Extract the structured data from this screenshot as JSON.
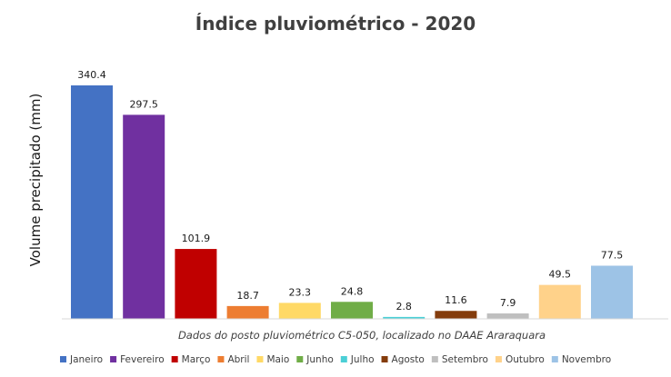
{
  "chart_data": {
    "type": "bar",
    "title": "Índice pluviométrico - 2020",
    "ylabel": "Volume precipitado (mm)",
    "xlabel": "Dados do posto pluviométrico C5-050, localizado no DAAE Araraquara",
    "ylim": [
      0,
      340.4
    ],
    "grid": false,
    "legend_position": "bottom",
    "categories": [
      "Janeiro",
      "Fevereiro",
      "Março",
      "Abril",
      "Maio",
      "Junho",
      "Julho",
      "Agosto",
      "Setembro",
      "Outubro",
      "Novembro"
    ],
    "values": [
      340.4,
      297.5,
      101.9,
      18.7,
      23.3,
      24.8,
      2.8,
      11.6,
      7.9,
      49.5,
      77.5
    ],
    "value_labels": [
      "340.4",
      "297.5",
      "101.9",
      "18.7",
      "23.3",
      "24.8",
      "2.8",
      "11.6",
      "7.9",
      "49.5",
      "77.5"
    ],
    "colors": [
      "#4472c4",
      "#7030a0",
      "#c00000",
      "#ed7d31",
      "#ffd966",
      "#70ad47",
      "#4bcfd6",
      "#843c0c",
      "#bfbfbf",
      "#ffd28a",
      "#9dc3e6"
    ]
  }
}
